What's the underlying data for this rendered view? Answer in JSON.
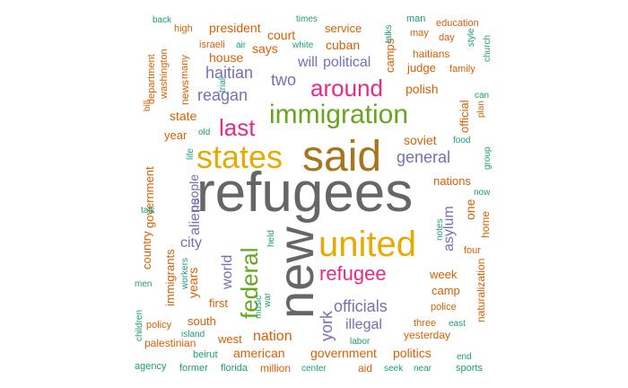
{
  "palette": {
    "teal": "#1b9e77",
    "orange": "#d95f02",
    "purple": "#7570b3",
    "magenta": "#e7298a",
    "green": "#66a61e",
    "gold": "#e6ab02",
    "brown": "#a6761d",
    "grey": "#666666"
  },
  "words": [
    {
      "text": "refugees",
      "color": "grey"
    },
    {
      "text": "said",
      "color": "brown"
    },
    {
      "text": "new",
      "color": "grey"
    },
    {
      "text": "united",
      "color": "gold"
    },
    {
      "text": "states",
      "color": "gold"
    },
    {
      "text": "immigration",
      "color": "green"
    },
    {
      "text": "refugee",
      "color": "magenta"
    },
    {
      "text": "last",
      "color": "magenta"
    },
    {
      "text": "around",
      "color": "magenta"
    },
    {
      "text": "federal",
      "color": "green"
    },
    {
      "text": "general",
      "color": "purple"
    },
    {
      "text": "haitian",
      "color": "purple"
    },
    {
      "text": "reagan",
      "color": "purple"
    },
    {
      "text": "two",
      "color": "purple"
    },
    {
      "text": "political",
      "color": "purple"
    },
    {
      "text": "will",
      "color": "purple"
    },
    {
      "text": "york",
      "color": "purple"
    },
    {
      "text": "officials",
      "color": "purple"
    },
    {
      "text": "illegal",
      "color": "purple"
    },
    {
      "text": "asylum",
      "color": "purple"
    },
    {
      "text": "world",
      "color": "purple"
    },
    {
      "text": "aliens",
      "color": "purple"
    },
    {
      "text": "people",
      "color": "purple"
    },
    {
      "text": "city",
      "color": "purple"
    },
    {
      "text": "years",
      "color": "orange"
    },
    {
      "text": "nation",
      "color": "orange"
    },
    {
      "text": "american",
      "color": "orange"
    },
    {
      "text": "government",
      "color": "orange"
    },
    {
      "text": "politics",
      "color": "orange"
    },
    {
      "text": "president",
      "color": "orange"
    },
    {
      "text": "court",
      "color": "orange"
    },
    {
      "text": "says",
      "color": "orange"
    },
    {
      "text": "house",
      "color": "orange"
    },
    {
      "text": "cuban",
      "color": "orange"
    },
    {
      "text": "service",
      "color": "orange"
    },
    {
      "text": "camps",
      "color": "orange"
    },
    {
      "text": "judge",
      "color": "orange"
    },
    {
      "text": "haitians",
      "color": "orange"
    },
    {
      "text": "polish",
      "color": "orange"
    },
    {
      "text": "soviet",
      "color": "orange"
    },
    {
      "text": "nations",
      "color": "orange"
    },
    {
      "text": "official",
      "color": "orange"
    },
    {
      "text": "one",
      "color": "orange"
    },
    {
      "text": "week",
      "color": "orange"
    },
    {
      "text": "camp",
      "color": "orange"
    },
    {
      "text": "state",
      "color": "orange"
    },
    {
      "text": "year",
      "color": "orange"
    },
    {
      "text": "news",
      "color": "orange"
    },
    {
      "text": "government",
      "color": "orange"
    },
    {
      "text": "country",
      "color": "orange"
    },
    {
      "text": "immigrants",
      "color": "orange"
    },
    {
      "text": "first",
      "color": "orange"
    },
    {
      "text": "south",
      "color": "orange"
    },
    {
      "text": "west",
      "color": "orange"
    },
    {
      "text": "yesterday",
      "color": "orange"
    },
    {
      "text": "naturalization",
      "color": "orange"
    },
    {
      "text": "home",
      "color": "orange"
    },
    {
      "text": "million",
      "color": "orange"
    },
    {
      "text": "aid",
      "color": "orange"
    },
    {
      "text": "policy",
      "color": "orange"
    },
    {
      "text": "palestinian",
      "color": "orange"
    },
    {
      "text": "three",
      "color": "orange"
    },
    {
      "text": "police",
      "color": "orange"
    },
    {
      "text": "four",
      "color": "orange"
    },
    {
      "text": "washington",
      "color": "orange"
    },
    {
      "text": "department",
      "color": "orange"
    },
    {
      "text": "israeli",
      "color": "orange"
    },
    {
      "text": "many",
      "color": "orange"
    },
    {
      "text": "education",
      "color": "orange"
    },
    {
      "text": "day",
      "color": "orange"
    },
    {
      "text": "family",
      "color": "orange"
    },
    {
      "text": "may",
      "color": "orange"
    },
    {
      "text": "bill",
      "color": "orange"
    },
    {
      "text": "high",
      "color": "orange"
    },
    {
      "text": "plan",
      "color": "orange"
    },
    {
      "text": "back",
      "color": "teal"
    },
    {
      "text": "air",
      "color": "teal"
    },
    {
      "text": "white",
      "color": "teal"
    },
    {
      "text": "times",
      "color": "teal"
    },
    {
      "text": "talks",
      "color": "teal"
    },
    {
      "text": "man",
      "color": "teal"
    },
    {
      "text": "style",
      "color": "teal"
    },
    {
      "text": "church",
      "color": "teal"
    },
    {
      "text": "trial",
      "color": "teal"
    },
    {
      "text": "can",
      "color": "teal"
    },
    {
      "text": "food",
      "color": "teal"
    },
    {
      "text": "group",
      "color": "teal"
    },
    {
      "text": "old",
      "color": "teal"
    },
    {
      "text": "life",
      "color": "teal"
    },
    {
      "text": "talk",
      "color": "teal"
    },
    {
      "text": "now",
      "color": "teal"
    },
    {
      "text": "notes",
      "color": "teal"
    },
    {
      "text": "held",
      "color": "teal"
    },
    {
      "text": "workers",
      "color": "teal"
    },
    {
      "text": "war",
      "color": "teal"
    },
    {
      "text": "music",
      "color": "teal"
    },
    {
      "text": "men",
      "color": "teal"
    },
    {
      "text": "children",
      "color": "teal"
    },
    {
      "text": "island",
      "color": "teal"
    },
    {
      "text": "labor",
      "color": "teal"
    },
    {
      "text": "east",
      "color": "teal"
    },
    {
      "text": "end",
      "color": "teal"
    },
    {
      "text": "beirut",
      "color": "teal"
    },
    {
      "text": "agency",
      "color": "teal"
    },
    {
      "text": "former",
      "color": "teal"
    },
    {
      "text": "florida",
      "color": "teal"
    },
    {
      "text": "center",
      "color": "teal"
    },
    {
      "text": "seek",
      "color": "teal"
    },
    {
      "text": "near",
      "color": "teal"
    },
    {
      "text": "sports",
      "color": "teal"
    }
  ]
}
